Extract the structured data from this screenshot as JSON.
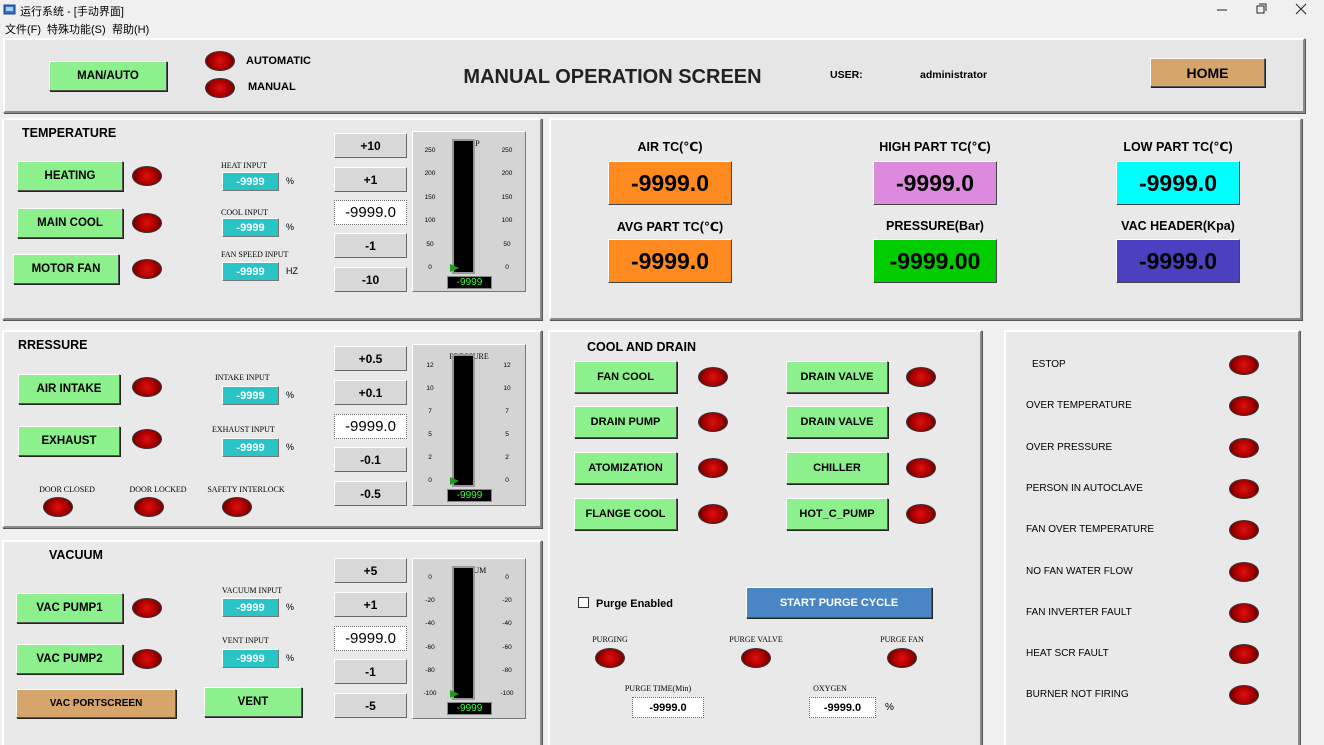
{
  "window": {
    "title": "运行系统 - [手动界面]",
    "menu": [
      "文件(F)",
      "特殊功能(S)",
      "帮助(H)"
    ]
  },
  "header": {
    "man_auto": "MAN/AUTO",
    "automatic": "AUTOMATIC",
    "manual": "MANUAL",
    "title": "MANUAL OPERATION SCREEN",
    "user_label": "USER:",
    "user": "administrator",
    "home": "HOME"
  },
  "temperature": {
    "title": "TEMPERATURE",
    "buttons": [
      "HEATING",
      "MAIN COOL",
      "MOTOR FAN"
    ],
    "inputs": [
      {
        "label": "HEAT INPUT",
        "value": "-9999",
        "unit": "%"
      },
      {
        "label": "COOL INPUT",
        "value": "-9999",
        "unit": "%"
      },
      {
        "label": "FAN SPEED INPUT",
        "value": "-9999",
        "unit": "HZ"
      }
    ],
    "steps": [
      "+10",
      "+1",
      "-1",
      "-10"
    ],
    "setpoint": "-9999.0",
    "gauge": {
      "title": "TEMP",
      "ticks": [
        "250",
        "200",
        "150",
        "100",
        "50",
        "0"
      ],
      "readout": "-9999"
    }
  },
  "pressure": {
    "title": "RRESSURE",
    "buttons": [
      "AIR INTAKE",
      "EXHAUST"
    ],
    "inputs": [
      {
        "label": "INTAKE INPUT",
        "value": "-9999",
        "unit": "%"
      },
      {
        "label": "EXHAUST INPUT",
        "value": "-9999",
        "unit": "%"
      }
    ],
    "indicators": [
      "DOOR CLOSED",
      "DOOR LOCKED",
      "SAFETY INTERLOCK"
    ],
    "steps": [
      "+0.5",
      "+0.1",
      "-0.1",
      "-0.5"
    ],
    "setpoint": "-9999.0",
    "gauge": {
      "title": "PRESSURE",
      "ticks": [
        "12",
        "10",
        "7",
        "5",
        "2",
        "0"
      ],
      "readout": "-9999"
    }
  },
  "vacuum": {
    "title": "VACUUM",
    "buttons": [
      "VAC PUMP1",
      "VAC PUMP2"
    ],
    "inputs": [
      {
        "label": "VACUUM INPUT",
        "value": "-9999",
        "unit": "%"
      },
      {
        "label": "VENT INPUT",
        "value": "-9999",
        "unit": "%"
      }
    ],
    "portscreen": "VAC PORTSCREEN",
    "vent": "VENT",
    "steps": [
      "+5",
      "+1",
      "-1",
      "-5"
    ],
    "setpoint": "-9999.0",
    "gauge": {
      "title": "VACUUM",
      "ticks": [
        "0",
        "-20",
        "-40",
        "-60",
        "-80",
        "-100"
      ],
      "readout": "-9999"
    }
  },
  "readings": [
    {
      "label": "AIR TC(℃)",
      "value": "-9999.0",
      "color": "#ff8a20"
    },
    {
      "label": "HIGH PART TC(℃)",
      "value": "-9999.0",
      "color": "#dc8ade"
    },
    {
      "label": "LOW PART TC(℃)",
      "value": "-9999.0",
      "color": "#00ffff"
    },
    {
      "label": "AVG PART TC(℃)",
      "value": "-9999.0",
      "color": "#ff8a20"
    },
    {
      "label": "PRESSURE(Bar)",
      "value": "-9999.00",
      "color": "#00cc00"
    },
    {
      "label": "VAC HEADER(Kpa)",
      "value": "-9999.0",
      "color": "#4a40c0"
    }
  ],
  "cool_drain": {
    "title": "COOL AND DRAIN",
    "left_buttons": [
      "FAN COOL",
      "DRAIN PUMP",
      "ATOMIZATION",
      "FLANGE COOL"
    ],
    "right_buttons": [
      "DRAIN VALVE",
      "DRAIN VALVE",
      "CHILLER",
      "HOT_C_PUMP"
    ],
    "purge_enabled": "Purge Enabled",
    "start_purge": "START PURGE CYCLE",
    "indicators": [
      "PURGING",
      "PURGE VALVE",
      "PURGE FAN"
    ],
    "purge_time": {
      "label": "PURGE TIME(Min)",
      "value": "-9999.0"
    },
    "oxygen": {
      "label": "OXYGEN",
      "value": "-9999.0",
      "unit": "%"
    }
  },
  "alarms": [
    "ESTOP",
    "OVER TEMPERATURE",
    "OVER PRESSURE",
    "PERSON IN AUTOCLAVE",
    "FAN OVER TEMPERATURE",
    "NO FAN WATER FLOW",
    "FAN INVERTER FAULT",
    "HEAT SCR FAULT",
    "BURNER NOT FIRING"
  ]
}
